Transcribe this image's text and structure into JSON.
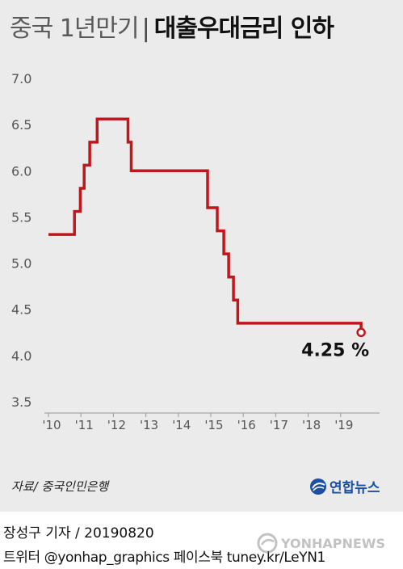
{
  "title": {
    "light": "중국 1년만기",
    "separator": "|",
    "bold": "대출우대금리 인하"
  },
  "chart_data": {
    "type": "line",
    "line_shape": "step",
    "color": "#c0171c",
    "x_ticks": [
      "'10",
      "'11",
      "'12",
      "'13",
      "'14",
      "'15",
      "'16",
      "'17",
      "'18",
      "'19"
    ],
    "y_ticks": [
      "7.0",
      "6.5",
      "6.0",
      "5.5",
      "5.0",
      "4.5",
      "4.0",
      "3.5"
    ],
    "ylim": [
      3.5,
      7.0
    ],
    "xlim": [
      2010.0,
      2020.0
    ],
    "grid": false,
    "series": [
      {
        "points": [
          [
            2010.0,
            5.31
          ],
          [
            2010.8,
            5.31
          ],
          [
            2010.8,
            5.56
          ],
          [
            2010.98,
            5.56
          ],
          [
            2010.98,
            5.81
          ],
          [
            2011.1,
            5.81
          ],
          [
            2011.1,
            6.06
          ],
          [
            2011.27,
            6.06
          ],
          [
            2011.27,
            6.31
          ],
          [
            2011.5,
            6.31
          ],
          [
            2011.5,
            6.56
          ],
          [
            2012.45,
            6.56
          ],
          [
            2012.45,
            6.31
          ],
          [
            2012.55,
            6.31
          ],
          [
            2012.55,
            6.0
          ],
          [
            2014.9,
            6.0
          ],
          [
            2014.9,
            5.6
          ],
          [
            2015.2,
            5.6
          ],
          [
            2015.2,
            5.35
          ],
          [
            2015.4,
            5.35
          ],
          [
            2015.4,
            5.1
          ],
          [
            2015.55,
            5.1
          ],
          [
            2015.55,
            4.85
          ],
          [
            2015.7,
            4.85
          ],
          [
            2015.7,
            4.6
          ],
          [
            2015.83,
            4.6
          ],
          [
            2015.83,
            4.35
          ],
          [
            2019.63,
            4.35
          ],
          [
            2019.63,
            4.25
          ]
        ]
      }
    ],
    "annotation": {
      "label": "4.25 %",
      "x": 2019.63,
      "y": 4.25
    }
  },
  "source": "자료/ 중국인민은행",
  "agency": {
    "label": "연합뉴스"
  },
  "footer": {
    "line1": "장성구 기자 /    20190820",
    "line2": "트위터 @yonhap_graphics  페이스북 tuney.kr/LeYN1"
  },
  "watermark": {
    "label": "YONHAPNEWS"
  }
}
